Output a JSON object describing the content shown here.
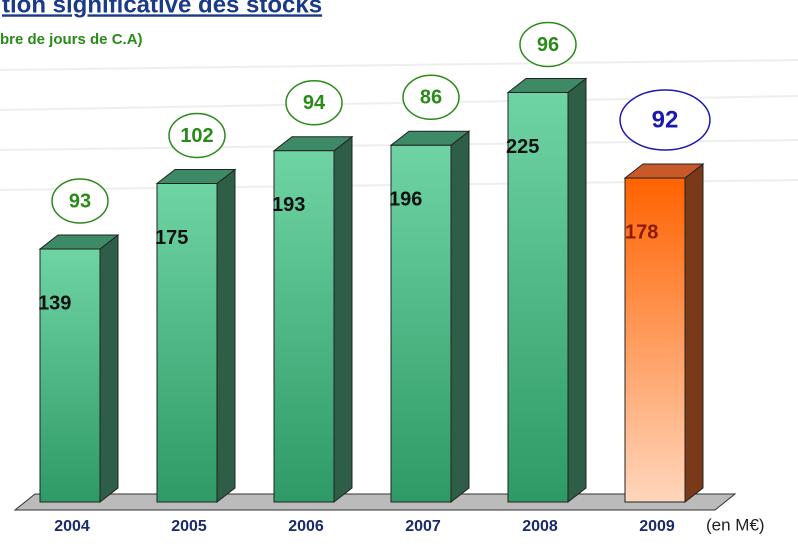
{
  "chart_data": {
    "type": "bar3d",
    "title": "tion significative des stocks",
    "subtitle": "bre de jours de C.A)",
    "unit_label": "(en M€)",
    "categories": [
      "2004",
      "2005",
      "2006",
      "2007",
      "2008",
      "2009"
    ],
    "values": [
      139,
      175,
      193,
      196,
      225,
      178
    ],
    "colors": [
      "#3aa86f",
      "#3aa86f",
      "#3aa86f",
      "#3aa86f",
      "#3aa86f",
      "#ff6a10"
    ],
    "annotations": {
      "values": [
        93,
        102,
        94,
        86,
        96,
        92
      ],
      "colors": [
        "#2a8a1a",
        "#2a8a1a",
        "#2a8a1a",
        "#2a8a1a",
        "#2a8a1a",
        "#1a1ab0"
      ]
    }
  }
}
